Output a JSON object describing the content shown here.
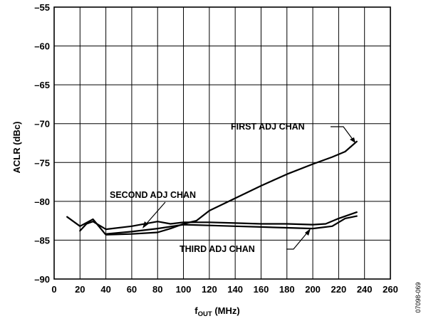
{
  "chart_data": {
    "type": "line",
    "title": "",
    "xlabel_main": "f",
    "xlabel_sub": "OUT",
    "xlabel_units": " (MHz)",
    "ylabel": "ACLR (dBc)",
    "xlim": [
      0,
      260
    ],
    "ylim": [
      -90,
      -55
    ],
    "x_ticks": [
      0,
      20,
      40,
      60,
      80,
      100,
      120,
      140,
      160,
      180,
      200,
      220,
      240,
      260
    ],
    "y_ticks": [
      -55,
      -60,
      -65,
      -70,
      -75,
      -80,
      -85,
      -90
    ],
    "x_tick_labels": [
      "0",
      "20",
      "40",
      "60",
      "80",
      "100",
      "120",
      "140",
      "160",
      "180",
      "200",
      "220",
      "240",
      "260"
    ],
    "y_tick_labels": [
      "–55",
      "–60",
      "–65",
      "–70",
      "–75",
      "–80",
      "–85",
      "–90"
    ],
    "grid": true,
    "series": [
      {
        "name": "FIRST ADJ CHAN",
        "x": [
          10,
          20,
          30,
          40,
          60,
          80,
          90,
          100,
          110,
          120,
          140,
          160,
          180,
          200,
          215,
          225,
          234
        ],
        "y": [
          -82.0,
          -83.2,
          -82.3,
          -84.3,
          -84.2,
          -84.0,
          -83.5,
          -82.9,
          -82.5,
          -81.2,
          -79.6,
          -78.0,
          -76.5,
          -75.2,
          -74.3,
          -73.6,
          -72.3
        ]
      },
      {
        "name": "SECOND ADJ CHAN",
        "x": [
          20,
          25,
          30,
          40,
          60,
          80,
          90,
          100,
          110,
          120,
          140,
          160,
          180,
          200,
          210,
          220,
          234
        ],
        "y": [
          -83.8,
          -82.9,
          -82.6,
          -83.6,
          -83.2,
          -82.6,
          -82.9,
          -82.7,
          -82.7,
          -82.7,
          -82.8,
          -82.9,
          -82.9,
          -83.0,
          -82.9,
          -82.2,
          -81.4
        ]
      },
      {
        "name": "THIRD ADJ CHAN",
        "x": [
          40,
          60,
          80,
          100,
          120,
          140,
          160,
          180,
          200,
          215,
          225,
          234
        ],
        "y": [
          -84.2,
          -83.9,
          -83.5,
          -83.0,
          -83.1,
          -83.2,
          -83.3,
          -83.4,
          -83.5,
          -83.2,
          -82.2,
          -81.9
        ]
      }
    ],
    "annotations": [
      {
        "text": "FIRST ADJ CHAN"
      },
      {
        "text": "SECOND ADJ CHAN"
      },
      {
        "text": "THIRD ADJ CHAN"
      }
    ],
    "figure_id": "07098-069"
  }
}
